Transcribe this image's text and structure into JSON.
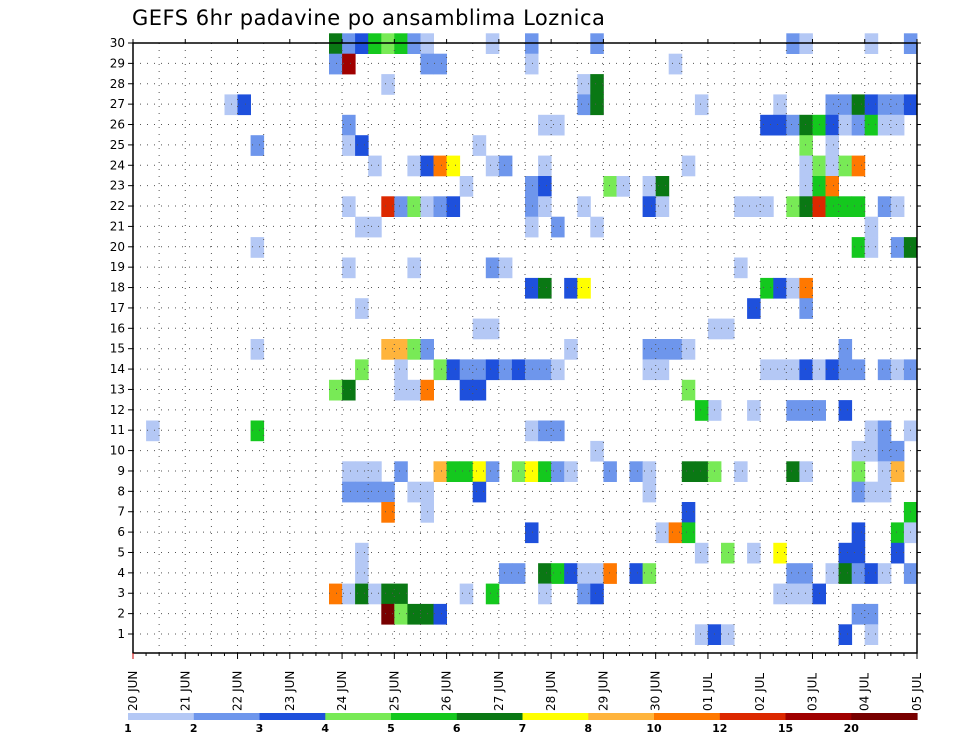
{
  "chart_data": {
    "type": "heatmap",
    "title": "GEFS 6hr padavine po ansamblima Loznica",
    "x_tick_labels": [
      "20 JUN",
      "21 JUN",
      "22 JUN",
      "23 JUN",
      "24 JUN",
      "25 JUN",
      "26 JUN",
      "27 JUN",
      "28 JUN",
      "29 JUN",
      "30 JUN",
      "01 JUL",
      "02 JUL",
      "03 JUL",
      "04 JUL",
      "05 JUL"
    ],
    "y_tick_labels": [
      "1",
      "2",
      "3",
      "4",
      "5",
      "6",
      "7",
      "8",
      "9",
      "10",
      "11",
      "12",
      "13",
      "14",
      "15",
      "16",
      "17",
      "18",
      "19",
      "20",
      "21",
      "22",
      "23",
      "24",
      "25",
      "26",
      "27",
      "28",
      "29",
      "30"
    ],
    "y_range": [
      1,
      30
    ],
    "x_steps_per_day": 4,
    "grid": true,
    "legend": {
      "placement": "bottom",
      "levels": [
        "1",
        "2",
        "3",
        "4",
        "5",
        "6",
        "7",
        "8",
        "10",
        "12",
        "15",
        "20"
      ],
      "colors": [
        "#b4c8f5",
        "#6e96ec",
        "#1e50dc",
        "#78ea56",
        "#14c81e",
        "#0a7814",
        "#ffff00",
        "#ffb43c",
        "#ff7800",
        "#dc2800",
        "#a00000",
        "#780000"
      ]
    },
    "cells": [
      [
        30,
        15,
        6
      ],
      [
        30,
        16,
        2
      ],
      [
        30,
        17,
        3
      ],
      [
        30,
        18,
        5
      ],
      [
        30,
        19,
        4
      ],
      [
        30,
        20,
        5
      ],
      [
        30,
        21,
        2
      ],
      [
        30,
        22,
        1
      ],
      [
        30,
        27,
        1
      ],
      [
        30,
        30,
        2
      ],
      [
        30,
        35,
        2
      ],
      [
        30,
        50,
        2
      ],
      [
        30,
        51,
        1
      ],
      [
        30,
        56,
        1
      ],
      [
        30,
        59,
        2
      ],
      [
        29,
        15,
        2
      ],
      [
        29,
        16,
        11
      ],
      [
        29,
        22,
        2
      ],
      [
        29,
        23,
        2
      ],
      [
        29,
        30,
        1
      ],
      [
        29,
        41,
        1
      ],
      [
        28,
        19,
        1
      ],
      [
        28,
        34,
        1
      ],
      [
        28,
        35,
        6
      ],
      [
        27,
        7,
        1
      ],
      [
        27,
        8,
        3
      ],
      [
        27,
        34,
        2
      ],
      [
        27,
        35,
        6
      ],
      [
        27,
        43,
        1
      ],
      [
        27,
        49,
        1
      ],
      [
        27,
        53,
        2
      ],
      [
        27,
        54,
        2
      ],
      [
        27,
        55,
        6
      ],
      [
        27,
        56,
        3
      ],
      [
        27,
        57,
        2
      ],
      [
        27,
        58,
        2
      ],
      [
        27,
        59,
        3
      ],
      [
        26,
        16,
        2
      ],
      [
        26,
        31,
        1
      ],
      [
        26,
        32,
        1
      ],
      [
        26,
        48,
        3
      ],
      [
        26,
        49,
        3
      ],
      [
        26,
        50,
        2
      ],
      [
        26,
        51,
        6
      ],
      [
        26,
        52,
        5
      ],
      [
        26,
        53,
        3
      ],
      [
        26,
        54,
        1
      ],
      [
        26,
        55,
        2
      ],
      [
        26,
        56,
        5
      ],
      [
        26,
        57,
        1
      ],
      [
        26,
        58,
        1
      ],
      [
        25,
        9,
        2
      ],
      [
        25,
        16,
        1
      ],
      [
        25,
        17,
        3
      ],
      [
        25,
        26,
        1
      ],
      [
        25,
        51,
        4
      ],
      [
        25,
        53,
        1
      ],
      [
        24,
        18,
        1
      ],
      [
        24,
        21,
        1
      ],
      [
        24,
        22,
        3
      ],
      [
        24,
        23,
        9
      ],
      [
        24,
        24,
        7
      ],
      [
        24,
        27,
        1
      ],
      [
        24,
        28,
        2
      ],
      [
        24,
        31,
        1
      ],
      [
        24,
        42,
        1
      ],
      [
        24,
        51,
        1
      ],
      [
        24,
        52,
        4
      ],
      [
        24,
        53,
        1
      ],
      [
        24,
        54,
        4
      ],
      [
        24,
        55,
        9
      ],
      [
        23,
        25,
        1
      ],
      [
        23,
        30,
        2
      ],
      [
        23,
        31,
        3
      ],
      [
        23,
        36,
        4
      ],
      [
        23,
        37,
        1
      ],
      [
        23,
        39,
        1
      ],
      [
        23,
        40,
        6
      ],
      [
        23,
        51,
        1
      ],
      [
        23,
        52,
        5
      ],
      [
        23,
        53,
        9
      ],
      [
        22,
        16,
        1
      ],
      [
        22,
        19,
        10
      ],
      [
        22,
        20,
        2
      ],
      [
        22,
        21,
        4
      ],
      [
        22,
        22,
        1
      ],
      [
        22,
        23,
        2
      ],
      [
        22,
        24,
        3
      ],
      [
        22,
        30,
        2
      ],
      [
        22,
        31,
        1
      ],
      [
        22,
        34,
        1
      ],
      [
        22,
        39,
        3
      ],
      [
        22,
        40,
        1
      ],
      [
        22,
        46,
        1
      ],
      [
        22,
        47,
        1
      ],
      [
        22,
        48,
        1
      ],
      [
        22,
        50,
        4
      ],
      [
        22,
        51,
        6
      ],
      [
        22,
        52,
        10
      ],
      [
        22,
        53,
        5
      ],
      [
        22,
        54,
        5
      ],
      [
        22,
        55,
        5
      ],
      [
        22,
        57,
        2
      ],
      [
        22,
        58,
        1
      ],
      [
        21,
        17,
        1
      ],
      [
        21,
        18,
        1
      ],
      [
        21,
        30,
        1
      ],
      [
        21,
        32,
        2
      ],
      [
        21,
        35,
        1
      ],
      [
        21,
        56,
        1
      ],
      [
        20,
        9,
        1
      ],
      [
        20,
        55,
        5
      ],
      [
        20,
        56,
        1
      ],
      [
        20,
        58,
        2
      ],
      [
        20,
        59,
        6
      ],
      [
        19,
        16,
        1
      ],
      [
        19,
        21,
        1
      ],
      [
        19,
        27,
        2
      ],
      [
        19,
        28,
        1
      ],
      [
        19,
        46,
        1
      ],
      [
        18,
        30,
        3
      ],
      [
        18,
        31,
        6
      ],
      [
        18,
        33,
        3
      ],
      [
        18,
        34,
        7
      ],
      [
        18,
        48,
        5
      ],
      [
        18,
        49,
        3
      ],
      [
        18,
        50,
        1
      ],
      [
        18,
        51,
        9
      ],
      [
        17,
        17,
        1
      ],
      [
        17,
        47,
        3
      ],
      [
        17,
        51,
        2
      ],
      [
        16,
        26,
        1
      ],
      [
        16,
        27,
        1
      ],
      [
        16,
        44,
        1
      ],
      [
        16,
        45,
        1
      ],
      [
        15,
        9,
        1
      ],
      [
        15,
        19,
        8
      ],
      [
        15,
        20,
        8
      ],
      [
        15,
        21,
        4
      ],
      [
        15,
        22,
        2
      ],
      [
        15,
        33,
        1
      ],
      [
        15,
        39,
        2
      ],
      [
        15,
        40,
        2
      ],
      [
        15,
        41,
        2
      ],
      [
        15,
        42,
        1
      ],
      [
        15,
        54,
        2
      ],
      [
        14,
        17,
        4
      ],
      [
        14,
        20,
        1
      ],
      [
        14,
        23,
        4
      ],
      [
        14,
        24,
        3
      ],
      [
        14,
        25,
        2
      ],
      [
        14,
        26,
        2
      ],
      [
        14,
        27,
        3
      ],
      [
        14,
        28,
        2
      ],
      [
        14,
        29,
        3
      ],
      [
        14,
        30,
        2
      ],
      [
        14,
        31,
        2
      ],
      [
        14,
        32,
        1
      ],
      [
        14,
        39,
        1
      ],
      [
        14,
        40,
        1
      ],
      [
        14,
        48,
        1
      ],
      [
        14,
        49,
        1
      ],
      [
        14,
        50,
        1
      ],
      [
        14,
        51,
        3
      ],
      [
        14,
        52,
        1
      ],
      [
        14,
        53,
        3
      ],
      [
        14,
        54,
        2
      ],
      [
        14,
        55,
        2
      ],
      [
        14,
        57,
        2
      ],
      [
        14,
        58,
        1
      ],
      [
        14,
        59,
        2
      ],
      [
        13,
        15,
        4
      ],
      [
        13,
        16,
        6
      ],
      [
        13,
        20,
        1
      ],
      [
        13,
        21,
        1
      ],
      [
        13,
        22,
        9
      ],
      [
        13,
        25,
        3
      ],
      [
        13,
        26,
        3
      ],
      [
        13,
        42,
        4
      ],
      [
        12,
        44,
        1
      ],
      [
        12,
        43,
        5
      ],
      [
        12,
        47,
        1
      ],
      [
        12,
        50,
        2
      ],
      [
        12,
        51,
        2
      ],
      [
        12,
        52,
        2
      ],
      [
        12,
        54,
        3
      ],
      [
        11,
        1,
        1
      ],
      [
        11,
        9,
        5
      ],
      [
        11,
        30,
        1
      ],
      [
        11,
        31,
        2
      ],
      [
        11,
        32,
        2
      ],
      [
        11,
        56,
        1
      ],
      [
        11,
        57,
        2
      ],
      [
        11,
        59,
        1
      ],
      [
        10,
        35,
        1
      ],
      [
        10,
        55,
        1
      ],
      [
        10,
        56,
        1
      ],
      [
        10,
        57,
        2
      ],
      [
        10,
        58,
        2
      ],
      [
        9,
        16,
        1
      ],
      [
        9,
        17,
        1
      ],
      [
        9,
        18,
        1
      ],
      [
        9,
        20,
        2
      ],
      [
        9,
        23,
        8
      ],
      [
        9,
        24,
        5
      ],
      [
        9,
        25,
        5
      ],
      [
        9,
        26,
        7
      ],
      [
        9,
        27,
        2
      ],
      [
        9,
        29,
        4
      ],
      [
        9,
        30,
        7
      ],
      [
        9,
        31,
        5
      ],
      [
        9,
        32,
        2
      ],
      [
        9,
        33,
        1
      ],
      [
        9,
        36,
        2
      ],
      [
        9,
        38,
        2
      ],
      [
        9,
        39,
        1
      ],
      [
        9,
        42,
        6
      ],
      [
        9,
        43,
        6
      ],
      [
        9,
        44,
        4
      ],
      [
        9,
        46,
        1
      ],
      [
        9,
        50,
        6
      ],
      [
        9,
        51,
        1
      ],
      [
        9,
        55,
        4
      ],
      [
        9,
        57,
        1
      ],
      [
        9,
        58,
        8
      ],
      [
        8,
        16,
        2
      ],
      [
        8,
        17,
        2
      ],
      [
        8,
        18,
        2
      ],
      [
        8,
        19,
        2
      ],
      [
        8,
        21,
        1
      ],
      [
        8,
        22,
        1
      ],
      [
        8,
        26,
        3
      ],
      [
        8,
        39,
        1
      ],
      [
        8,
        55,
        2
      ],
      [
        8,
        56,
        1
      ],
      [
        8,
        57,
        1
      ],
      [
        7,
        19,
        9
      ],
      [
        7,
        22,
        1
      ],
      [
        7,
        42,
        3
      ],
      [
        7,
        59,
        5
      ],
      [
        6,
        40,
        1
      ],
      [
        6,
        41,
        9
      ],
      [
        6,
        42,
        5
      ],
      [
        6,
        30,
        3
      ],
      [
        6,
        55,
        3
      ],
      [
        6,
        58,
        5
      ],
      [
        6,
        59,
        1
      ],
      [
        5,
        17,
        1
      ],
      [
        5,
        43,
        1
      ],
      [
        5,
        45,
        4
      ],
      [
        5,
        47,
        1
      ],
      [
        5,
        49,
        7
      ],
      [
        5,
        54,
        3
      ],
      [
        5,
        55,
        3
      ],
      [
        5,
        58,
        3
      ],
      [
        4,
        17,
        1
      ],
      [
        4,
        28,
        2
      ],
      [
        4,
        29,
        2
      ],
      [
        4,
        31,
        6
      ],
      [
        4,
        32,
        5
      ],
      [
        4,
        33,
        3
      ],
      [
        4,
        34,
        1
      ],
      [
        4,
        35,
        1
      ],
      [
        4,
        36,
        9
      ],
      [
        4,
        38,
        3
      ],
      [
        4,
        39,
        4
      ],
      [
        4,
        50,
        2
      ],
      [
        4,
        51,
        2
      ],
      [
        4,
        53,
        1
      ],
      [
        4,
        54,
        6
      ],
      [
        4,
        55,
        2
      ],
      [
        4,
        56,
        3
      ],
      [
        4,
        57,
        1
      ],
      [
        4,
        59,
        2
      ],
      [
        3,
        15,
        9
      ],
      [
        3,
        16,
        1
      ],
      [
        3,
        17,
        6
      ],
      [
        3,
        18,
        1
      ],
      [
        3,
        19,
        6
      ],
      [
        3,
        20,
        6
      ],
      [
        3,
        25,
        1
      ],
      [
        3,
        27,
        5
      ],
      [
        3,
        31,
        1
      ],
      [
        3,
        34,
        2
      ],
      [
        3,
        35,
        3
      ],
      [
        3,
        49,
        1
      ],
      [
        3,
        50,
        1
      ],
      [
        3,
        51,
        1
      ],
      [
        3,
        52,
        3
      ],
      [
        2,
        19,
        12
      ],
      [
        2,
        20,
        4
      ],
      [
        2,
        21,
        6
      ],
      [
        2,
        22,
        6
      ],
      [
        2,
        23,
        3
      ],
      [
        2,
        55,
        2
      ],
      [
        2,
        56,
        2
      ],
      [
        1,
        43,
        1
      ],
      [
        1,
        44,
        3
      ],
      [
        1,
        45,
        1
      ],
      [
        1,
        54,
        3
      ],
      [
        1,
        56,
        1
      ]
    ]
  }
}
